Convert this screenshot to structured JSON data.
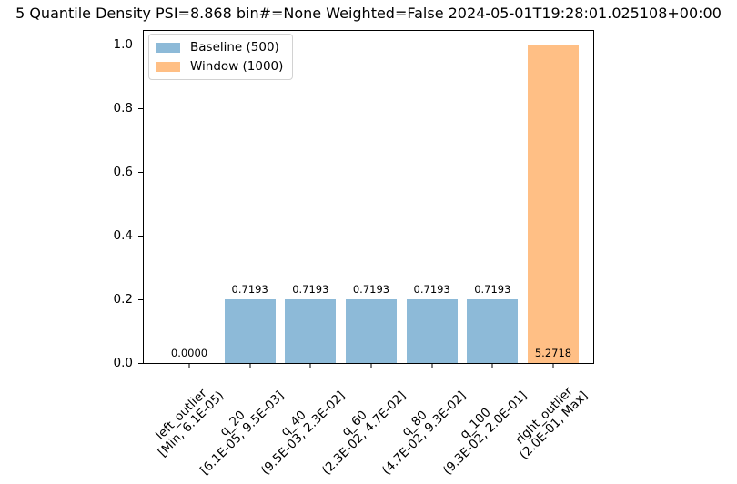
{
  "chart_data": {
    "type": "bar",
    "title": "5 Quantile Density PSI=8.868 bin#=None Weighted=False 2024-05-01T19:28:01.025108+00:00",
    "categories": [
      [
        "left_outlier",
        "[Min, 6.1E-05)"
      ],
      [
        "q_20",
        "[6.1E-05, 9.5E-03]"
      ],
      [
        "q_40",
        "(9.5E-03, 2.3E-02]"
      ],
      [
        "q_60",
        "(2.3E-02, 4.7E-02]"
      ],
      [
        "q_80",
        "(4.7E-02, 9.3E-02]"
      ],
      [
        "q_100",
        "(9.3E-02, 2.0E-01]"
      ],
      [
        "right_outlier",
        "(2.0E-01, Max]"
      ]
    ],
    "bars": [
      {
        "series": "Baseline (500)",
        "display_height": 0.0,
        "label": "0.0000",
        "color": "#8dbad8"
      },
      {
        "series": "Baseline (500)",
        "display_height": 0.2,
        "label": "0.7193",
        "color": "#8dbad8"
      },
      {
        "series": "Baseline (500)",
        "display_height": 0.2,
        "label": "0.7193",
        "color": "#8dbad8"
      },
      {
        "series": "Baseline (500)",
        "display_height": 0.2,
        "label": "0.7193",
        "color": "#8dbad8"
      },
      {
        "series": "Baseline (500)",
        "display_height": 0.2,
        "label": "0.7193",
        "color": "#8dbad8"
      },
      {
        "series": "Baseline (500)",
        "display_height": 0.2,
        "label": "0.7193",
        "color": "#8dbad8"
      },
      {
        "series": "Window (1000)",
        "display_height": 1.0,
        "label": "5.2718",
        "color": "#ffbf85"
      }
    ],
    "yticks": [
      "0.0",
      "0.2",
      "0.4",
      "0.6",
      "0.8",
      "1.0"
    ],
    "ylim": [
      0,
      1.043
    ],
    "xlabel": "",
    "ylabel": "",
    "grid": false,
    "legend_position": "upper left"
  },
  "legend": {
    "items": [
      {
        "label": "Baseline (500)",
        "color": "#8dbad8"
      },
      {
        "label": "Window (1000)",
        "color": "#ffbf85"
      }
    ]
  }
}
